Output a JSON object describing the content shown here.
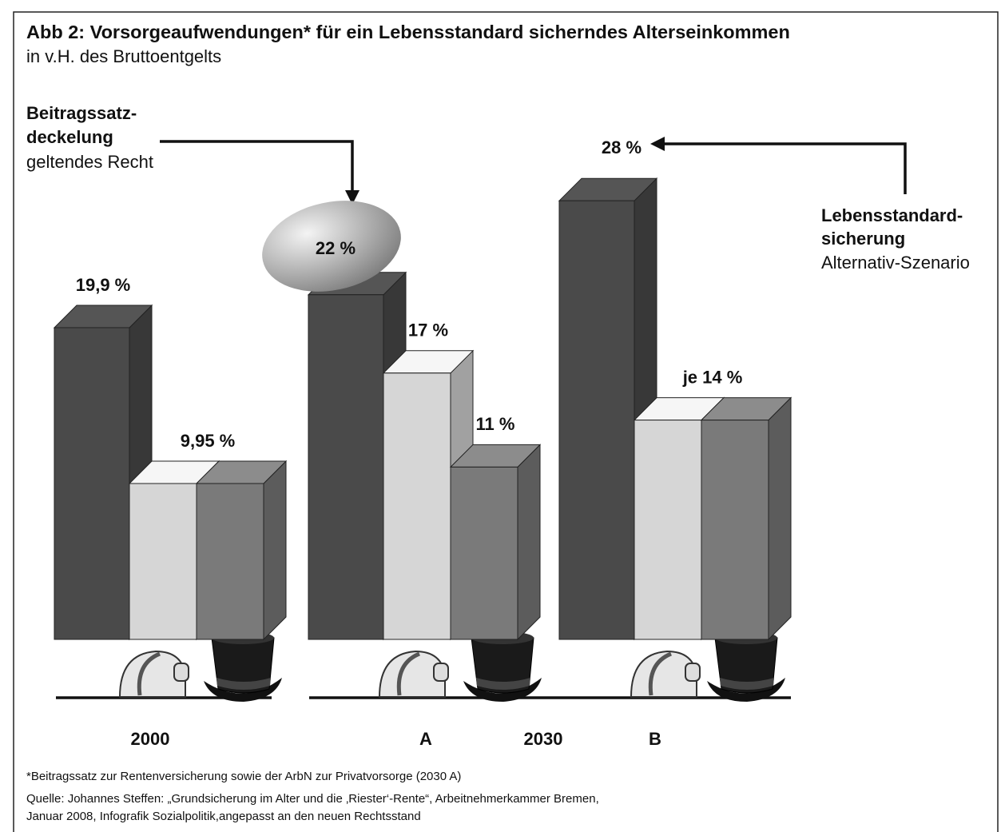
{
  "chart_data": {
    "type": "bar3d",
    "title": "Abb 2: Vorsorgeaufwendungen* für ein Lebensstandard sicherndes Alterseinkommen",
    "subtitle": "in v.H. des Bruttoentgelts",
    "categories": [
      "2000",
      "A",
      "B"
    ],
    "group_label": "2030",
    "series": [
      {
        "color": "#4a4a4a",
        "values": [
          19.9,
          22,
          28
        ],
        "value_labels": [
          "19,9 %",
          "22 %",
          "28 %"
        ]
      },
      {
        "color": "#d6d6d6",
        "values": [
          9.95,
          17,
          14
        ],
        "value_labels": [
          "9,95 %",
          "17 %",
          "je 14 %"
        ]
      },
      {
        "color": "#7a7a7a",
        "values": [
          9.95,
          11,
          14
        ],
        "value_labels": [
          null,
          "11 %",
          null
        ]
      }
    ],
    "annotations": [
      {
        "bold": [
          "Beitragssatz-",
          "deckelung"
        ],
        "text": "geltendes Recht"
      },
      {
        "bold": [
          "Lebensstandard-",
          "sicherung"
        ],
        "text": "Alternativ-Szenario"
      }
    ],
    "footnote": "*Beitragssatz zur Rentenversicherung sowie der ArbN zur Privatvorsorge (2030 A)",
    "source": [
      "Quelle: Johannes Steffen: „Grundsicherung im Alter und die ‚Riester‘-Rente“, Arbeitnehmerkammer Bremen,",
      "Januar 2008, Infografik Sozialpolitik,angepasst an den neuen Rechtsstand"
    ]
  }
}
